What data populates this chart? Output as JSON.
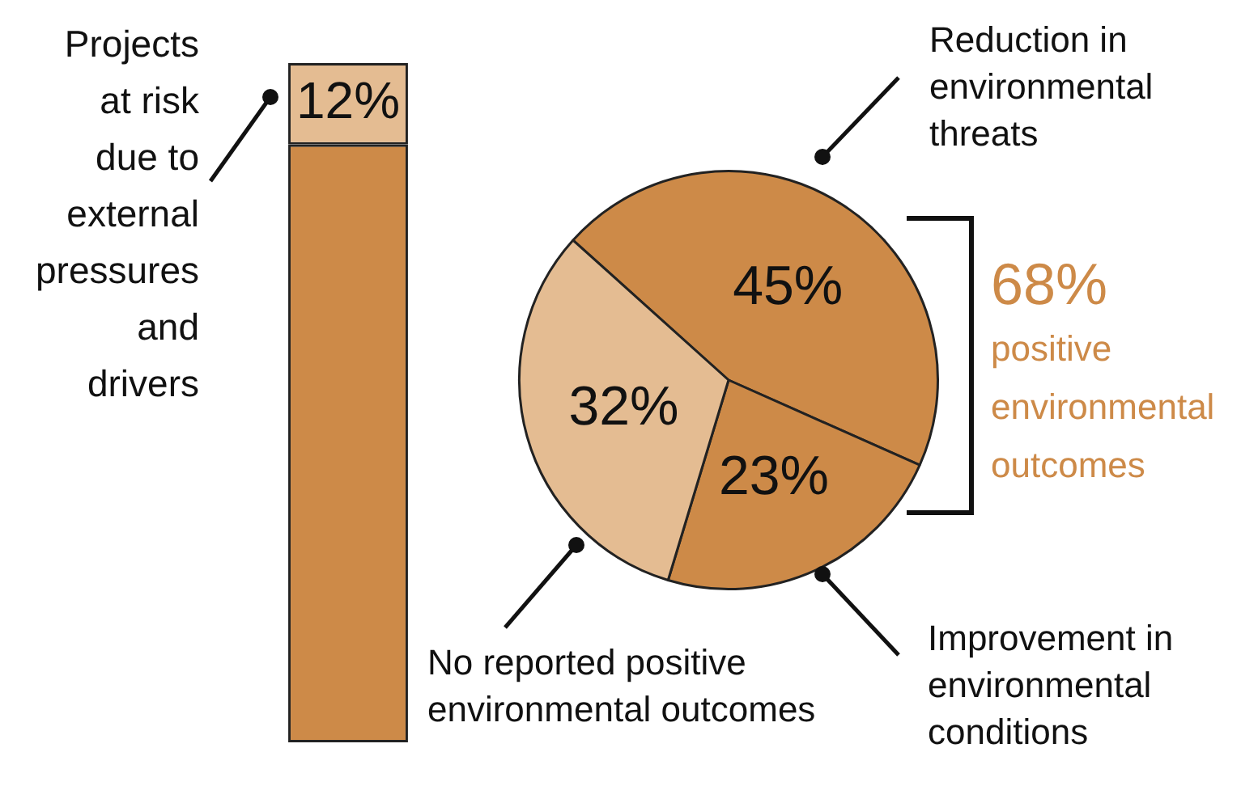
{
  "chart_data": [
    {
      "type": "bar",
      "stacked": true,
      "categories": [
        null
      ],
      "ylim": [
        0,
        100
      ],
      "tick_labels": false,
      "series": [
        {
          "color": "#cd8a48",
          "values": [
            88
          ]
        },
        {
          "color": "#e4bc92",
          "values": [
            12
          ],
          "value_labels": [
            "12%"
          ]
        }
      ],
      "annotations": [
        "Projects at risk due to external pressures and drivers"
      ]
    },
    {
      "type": "pie",
      "categories": [
        "Reduction in environmental threats",
        "Improvement in environmental conditions",
        "No reported positive environmental outcomes"
      ],
      "values": [
        45,
        23,
        32
      ],
      "colors": [
        "#cd8a48",
        "#cd8a48",
        "#e4bc92"
      ],
      "value_labels": [
        "45%",
        "23%",
        "32%"
      ],
      "annotations": [
        "68%",
        "positive environmental outcomes"
      ]
    }
  ]
}
